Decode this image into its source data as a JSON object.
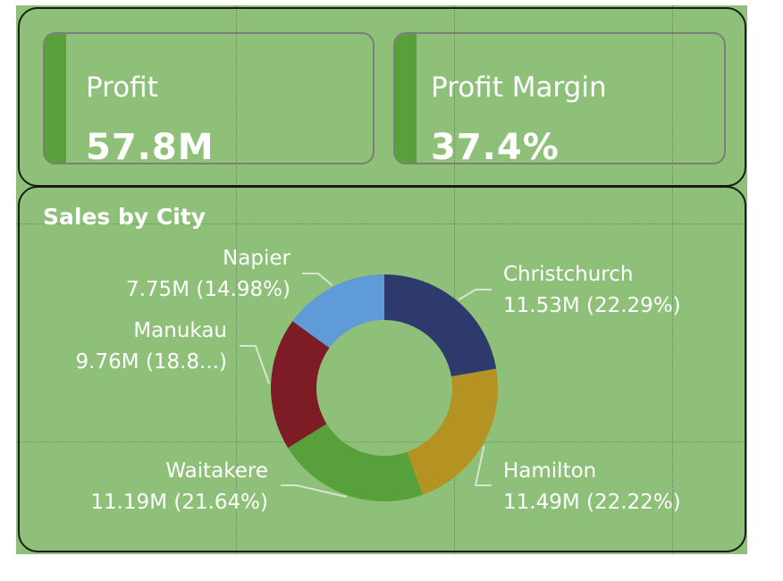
{
  "cards": [
    {
      "label": "Profit",
      "value": "57.8M"
    },
    {
      "label": "Profit Margin",
      "value": "37.4%"
    }
  ],
  "chart_title": "Sales by City",
  "colors": {
    "background": "#8fc07a",
    "accent_bar": "#58a13a"
  },
  "chart_data": {
    "type": "pie",
    "variant": "donut",
    "title": "Sales by City",
    "slices": [
      {
        "name": "Christchurch",
        "value": 11.53,
        "value_label": "11.53M (22.29%)",
        "percent": 22.29,
        "color": "#2e3a6e"
      },
      {
        "name": "Hamilton",
        "value": 11.49,
        "value_label": "11.49M (22.22%)",
        "percent": 22.22,
        "color": "#b59322"
      },
      {
        "name": "Waitakere",
        "value": 11.19,
        "value_label": "11.19M (21.64%)",
        "percent": 21.64,
        "color": "#58a13a"
      },
      {
        "name": "Manukau",
        "value": 9.76,
        "value_label": "9.76M (18.8...)",
        "percent": 18.87,
        "color": "#7e1c26"
      },
      {
        "name": "Napier",
        "value": 7.75,
        "value_label": "7.75M (14.98%)",
        "percent": 14.98,
        "color": "#5f9bd6"
      }
    ]
  }
}
